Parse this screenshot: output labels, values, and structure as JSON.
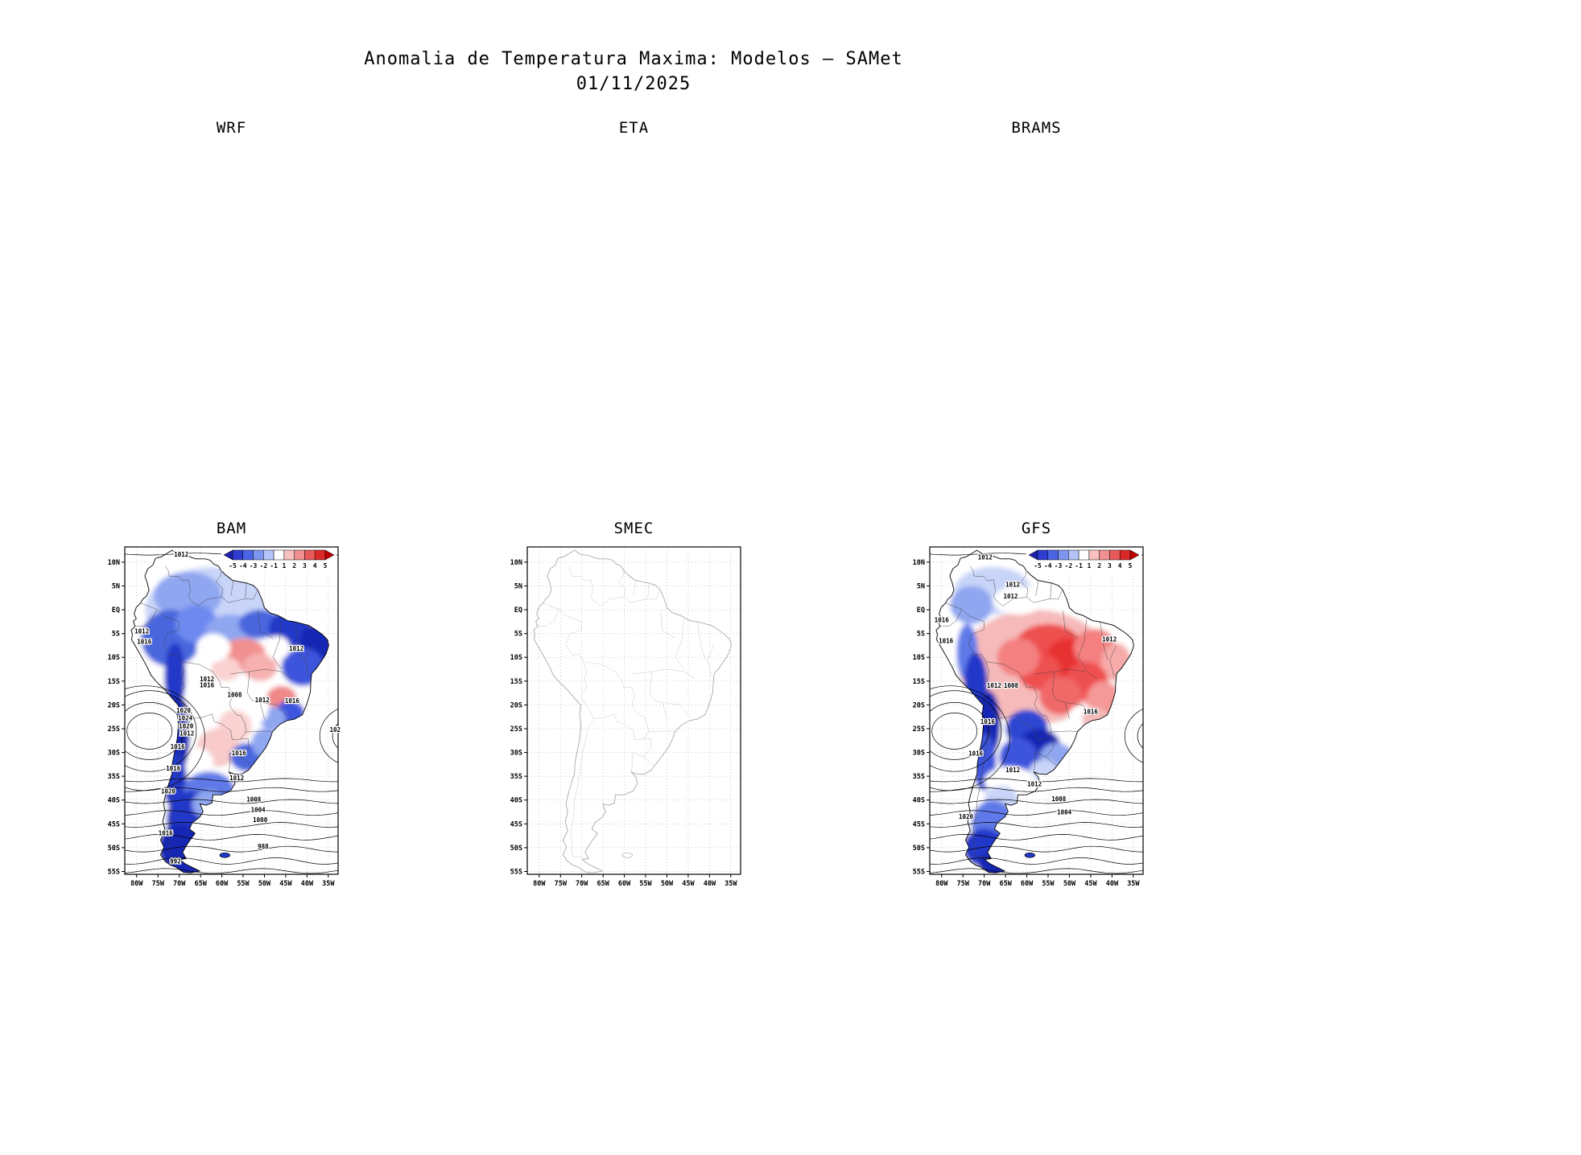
{
  "title": {
    "line1": "Anomalia de Temperatura Maxima: Modelos — SAMet",
    "line2": "01/11/2025"
  },
  "axes": {
    "yticks": [
      "10N",
      "5N",
      "EQ",
      "5S",
      "10S",
      "15S",
      "20S",
      "25S",
      "30S",
      "35S",
      "40S",
      "45S",
      "50S",
      "55S"
    ],
    "xticks": [
      "80W",
      "75W",
      "70W",
      "65W",
      "60W",
      "55W",
      "50W",
      "45W",
      "40W",
      "35W"
    ]
  },
  "colorbar": {
    "ticks": [
      "-5",
      "-4",
      "-3",
      "-2",
      "-1",
      "1",
      "2",
      "3",
      "4",
      "5"
    ],
    "colors": [
      "#1e22aa",
      "#2e3cd2",
      "#4a64e6",
      "#7c96f0",
      "#b4c4f8",
      "#ffffff",
      "#f8c0c0",
      "#f09090",
      "#e85a5a",
      "#dc2828",
      "#c00000"
    ]
  },
  "panels": [
    {
      "id": "wrf",
      "label": "WRF",
      "style": "empty",
      "colorbar": false,
      "contour_labels": []
    },
    {
      "id": "eta",
      "label": "ETA",
      "style": "empty",
      "colorbar": false,
      "contour_labels": []
    },
    {
      "id": "brams",
      "label": "BRAMS",
      "style": "empty",
      "colorbar": false,
      "contour_labels": []
    },
    {
      "id": "bam",
      "label": "BAM",
      "style": "anomaly",
      "colorbar": true,
      "contour_labels": [
        {
          "t": "1012",
          "lon": -69.5,
          "lat": 11.2
        },
        {
          "t": "1012",
          "lon": -78.8,
          "lat": -5.0
        },
        {
          "t": "1016",
          "lon": -78.2,
          "lat": -7.2
        },
        {
          "t": "1012",
          "lon": -42.5,
          "lat": -8.6
        },
        {
          "t": "1012",
          "lon": -63.5,
          "lat": -15.0
        },
        {
          "t": "1016",
          "lon": -63.5,
          "lat": -16.3
        },
        {
          "t": "1008",
          "lon": -57.0,
          "lat": -18.3
        },
        {
          "t": "1012",
          "lon": -50.5,
          "lat": -19.4
        },
        {
          "t": "1016",
          "lon": -43.5,
          "lat": -19.6
        },
        {
          "t": "1020",
          "lon": -69.0,
          "lat": -21.6
        },
        {
          "t": "1024",
          "lon": -68.6,
          "lat": -23.2
        },
        {
          "t": "1020",
          "lon": -68.4,
          "lat": -24.9
        },
        {
          "t": "1012",
          "lon": -68.2,
          "lat": -26.4
        },
        {
          "t": "102",
          "lon": -33.4,
          "lat": -25.7
        },
        {
          "t": "1016",
          "lon": -70.4,
          "lat": -29.2
        },
        {
          "t": "1016",
          "lon": -56.0,
          "lat": -30.6
        },
        {
          "t": "1016",
          "lon": -71.4,
          "lat": -33.8
        },
        {
          "t": "1012",
          "lon": -56.5,
          "lat": -35.8
        },
        {
          "t": "1020",
          "lon": -72.6,
          "lat": -38.6
        },
        {
          "t": "1008",
          "lon": -52.5,
          "lat": -40.3
        },
        {
          "t": "1004",
          "lon": -51.5,
          "lat": -42.5
        },
        {
          "t": "1000",
          "lon": -51.0,
          "lat": -44.6
        },
        {
          "t": "1016",
          "lon": -73.2,
          "lat": -47.4
        },
        {
          "t": "988",
          "lon": -50.3,
          "lat": -50.2
        },
        {
          "t": "992",
          "lon": -70.9,
          "lat": -53.3
        }
      ]
    },
    {
      "id": "smec",
      "label": "SMEC",
      "style": "outline",
      "colorbar": false,
      "contour_labels": []
    },
    {
      "id": "gfs",
      "label": "GFS",
      "style": "anomaly",
      "colorbar": true,
      "contour_labels": [
        {
          "t": "1012",
          "lon": -69.8,
          "lat": 10.6
        },
        {
          "t": "1012",
          "lon": -63.3,
          "lat": 4.8
        },
        {
          "t": "1012",
          "lon": -63.8,
          "lat": 2.4
        },
        {
          "t": "1016",
          "lon": -80.0,
          "lat": -2.6
        },
        {
          "t": "1016",
          "lon": -79.0,
          "lat": -7.0
        },
        {
          "t": "1012",
          "lon": -40.6,
          "lat": -6.7
        },
        {
          "t": "1012",
          "lon": -67.7,
          "lat": -16.4
        },
        {
          "t": "1008",
          "lon": -63.7,
          "lat": -16.4
        },
        {
          "t": "1016",
          "lon": -45.0,
          "lat": -21.9
        },
        {
          "t": "1016",
          "lon": -69.2,
          "lat": -24.0
        },
        {
          "t": "1016",
          "lon": -72.0,
          "lat": -30.7
        },
        {
          "t": "1012",
          "lon": -63.3,
          "lat": -34.1
        },
        {
          "t": "1012",
          "lon": -58.2,
          "lat": -37.1
        },
        {
          "t": "1008",
          "lon": -52.5,
          "lat": -40.2
        },
        {
          "t": "1004",
          "lon": -51.2,
          "lat": -43.0
        },
        {
          "t": "1020",
          "lon": -74.3,
          "lat": -43.9
        }
      ]
    }
  ]
}
